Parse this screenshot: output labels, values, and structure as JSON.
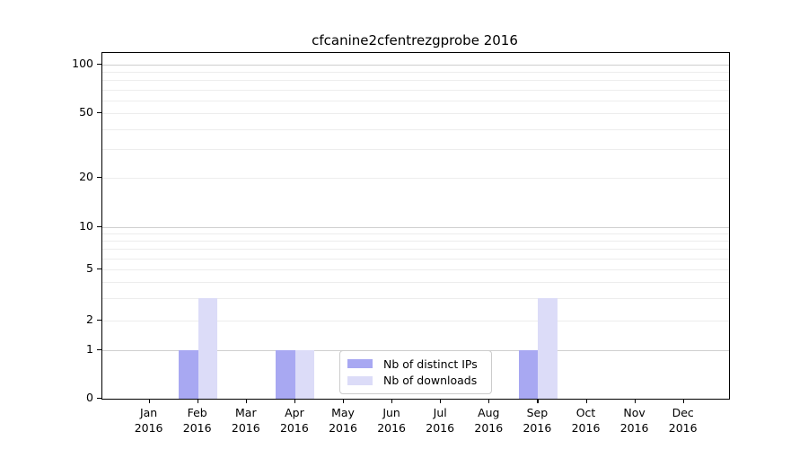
{
  "figure": {
    "title": "cfcanine2cfentrezgprobe 2016"
  },
  "chart_data": {
    "type": "bar",
    "title": "cfcanine2cfentrezgprobe 2016",
    "categories": [
      "Jan 2016",
      "Feb 2016",
      "Mar 2016",
      "Apr 2016",
      "May 2016",
      "Jun 2016",
      "Jul 2016",
      "Aug 2016",
      "Sep 2016",
      "Oct 2016",
      "Nov 2016",
      "Dec 2016"
    ],
    "series": [
      {
        "name": "Nb of distinct IPs",
        "color": "#a8a8f2",
        "values": [
          0,
          1,
          0,
          1,
          0,
          0,
          0,
          0,
          1,
          0,
          0,
          0
        ]
      },
      {
        "name": "Nb of downloads",
        "color": "#dcdcf8",
        "values": [
          0,
          3,
          0,
          1,
          0,
          0,
          0,
          0,
          3,
          0,
          0,
          0
        ]
      }
    ],
    "xlabel": "",
    "ylabel": "",
    "y_ticks": [
      0,
      1,
      2,
      5,
      10,
      20,
      50,
      100
    ],
    "y_scale": "log",
    "ylim": [
      0,
      120
    ],
    "grid": true,
    "legend_position": "inside lower center-right"
  }
}
